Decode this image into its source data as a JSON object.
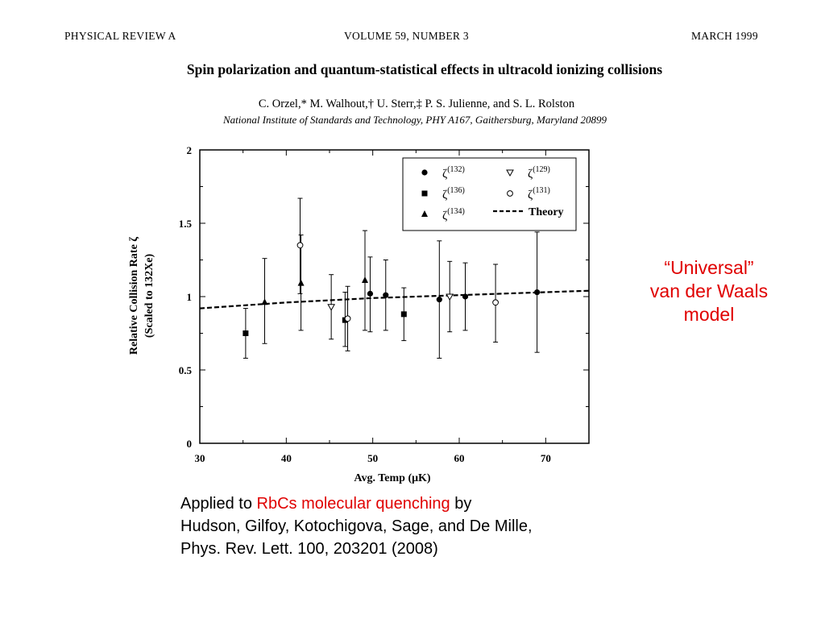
{
  "header": {
    "journal": "PHYSICAL REVIEW A",
    "volume": "VOLUME 59, NUMBER 3",
    "date": "MARCH 1999"
  },
  "paper": {
    "title": "Spin polarization and quantum-statistical effects in ultracold ionizing collisions",
    "authors": "C. Orzel,* M. Walhout,† U. Sterr,‡ P. S. Julienne, and S. L. Rolston",
    "affiliation": "National Institute of Standards and Technology, PHY A167, Gaithersburg, Maryland 20899"
  },
  "callout": {
    "line1": "“Universal”",
    "line2": "van der Waals",
    "line3": "model"
  },
  "note": {
    "prefix": "Applied to ",
    "highlight": "RbCs molecular quenching",
    "suffix": " by",
    "line2": "Hudson, Gilfoy, Kotochigova, Sage, and De Mille,",
    "line3": "Phys. Rev. Lett. 100, 203201 (2008)"
  },
  "colors": {
    "accent": "#e00000",
    "text": "#000000"
  },
  "chart_data": {
    "type": "scatter",
    "xlabel": "Avg. Temp (μK)",
    "ylabel_line1": "Relative Collision Rate ζ",
    "ylabel_line2": "(Scaled to 132Xe)",
    "xlim": [
      30,
      75
    ],
    "ylim": [
      0,
      2
    ],
    "xticks": [
      30,
      40,
      50,
      60,
      70
    ],
    "yticks": [
      0,
      0.5,
      1,
      1.5,
      2
    ],
    "ytick_labels": [
      "0",
      "0.5",
      "1",
      "1.5",
      "2"
    ],
    "legend_position": "top-right",
    "series": [
      {
        "name": "ζ(132)",
        "base": "ζ",
        "sup": "(132)",
        "marker": "filled-circle",
        "points": [
          {
            "x": 49.7,
            "y": 1.02,
            "lo": 0.76,
            "hi": 1.27
          },
          {
            "x": 51.5,
            "y": 1.01,
            "lo": 0.77,
            "hi": 1.25
          },
          {
            "x": 57.7,
            "y": 0.98,
            "lo": 0.58,
            "hi": 1.38
          },
          {
            "x": 60.7,
            "y": 1.0,
            "lo": 0.77,
            "hi": 1.23
          },
          {
            "x": 69.0,
            "y": 1.03,
            "lo": 0.62,
            "hi": 1.44
          }
        ]
      },
      {
        "name": "ζ(136)",
        "base": "ζ",
        "sup": "(136)",
        "marker": "filled-square",
        "points": [
          {
            "x": 35.3,
            "y": 0.75,
            "lo": 0.58,
            "hi": 0.92
          },
          {
            "x": 46.8,
            "y": 0.84,
            "lo": 0.66,
            "hi": 1.03
          },
          {
            "x": 53.6,
            "y": 0.88,
            "lo": 0.7,
            "hi": 1.06
          }
        ]
      },
      {
        "name": "ζ(134)",
        "base": "ζ",
        "sup": "(134)",
        "marker": "filled-triangle",
        "points": [
          {
            "x": 37.5,
            "y": 0.96,
            "lo": 0.68,
            "hi": 1.26
          },
          {
            "x": 41.7,
            "y": 1.09,
            "lo": 0.77,
            "hi": 1.42
          },
          {
            "x": 49.1,
            "y": 1.11,
            "lo": 0.77,
            "hi": 1.45
          }
        ]
      },
      {
        "name": "ζ(129)",
        "base": "ζ",
        "sup": "(129)",
        "marker": "open-triangle-down",
        "points": [
          {
            "x": 45.2,
            "y": 0.93,
            "lo": 0.71,
            "hi": 1.15
          },
          {
            "x": 58.9,
            "y": 1.0,
            "lo": 0.76,
            "hi": 1.24
          }
        ]
      },
      {
        "name": "ζ(131)",
        "base": "ζ",
        "sup": "(131)",
        "marker": "open-circle",
        "points": [
          {
            "x": 41.6,
            "y": 1.35,
            "lo": 1.02,
            "hi": 1.67
          },
          {
            "x": 47.1,
            "y": 0.85,
            "lo": 0.63,
            "hi": 1.07
          },
          {
            "x": 64.2,
            "y": 0.96,
            "lo": 0.69,
            "hi": 1.22
          }
        ]
      }
    ],
    "theory": {
      "name": "Theory",
      "style": "dashed",
      "points": [
        {
          "x": 30,
          "y": 0.92
        },
        {
          "x": 40,
          "y": 0.96
        },
        {
          "x": 50,
          "y": 0.99
        },
        {
          "x": 60,
          "y": 1.01
        },
        {
          "x": 70,
          "y": 1.03
        },
        {
          "x": 75,
          "y": 1.04
        }
      ]
    }
  }
}
